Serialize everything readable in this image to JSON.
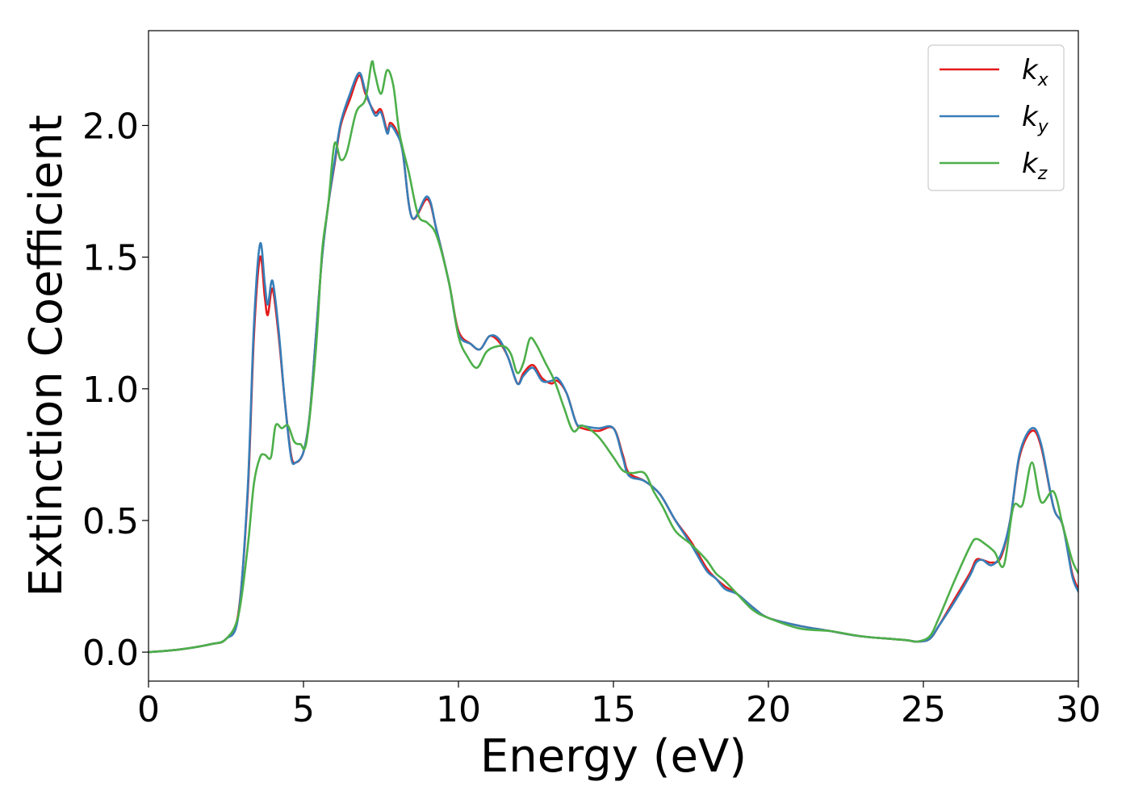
{
  "chart_data": {
    "type": "line",
    "title": "",
    "xlabel": "Energy (eV)",
    "ylabel": "Extinction Coefficient",
    "xlim": [
      0,
      30
    ],
    "ylim": [
      -0.11,
      2.36
    ],
    "xticks": [
      "0",
      "5",
      "10",
      "15",
      "20",
      "25",
      "30"
    ],
    "yticks": [
      "0.0",
      "0.5",
      "1.0",
      "1.5",
      "2.0"
    ],
    "grid": false,
    "legend_position": "top-right",
    "series": [
      {
        "name": "k",
        "subscript": "x",
        "color": "#e41a1c",
        "x": [
          0,
          1,
          2,
          2.5,
          2.9,
          3.2,
          3.4,
          3.6,
          3.75,
          3.85,
          4.0,
          4.2,
          4.4,
          4.6,
          4.75,
          5.0,
          5.2,
          5.4,
          5.6,
          5.8,
          6.0,
          6.2,
          6.5,
          6.8,
          7.0,
          7.3,
          7.5,
          7.7,
          7.8,
          8.0,
          8.2,
          8.5,
          9.0,
          9.3,
          9.7,
          10.0,
          10.4,
          10.7,
          11.0,
          11.3,
          11.6,
          11.9,
          12.1,
          12.4,
          12.7,
          13.0,
          13.2,
          13.5,
          13.8,
          14.0,
          14.5,
          15.0,
          15.3,
          15.5,
          16.0,
          16.5,
          17.0,
          17.5,
          18.0,
          18.3,
          18.6,
          19.0,
          19.5,
          20.0,
          21.0,
          22.0,
          23.0,
          24.0,
          24.5,
          24.8,
          25.2,
          25.5,
          26.0,
          26.5,
          26.7,
          26.9,
          27.2,
          27.5,
          27.8,
          28.1,
          28.5,
          28.8,
          29.2,
          29.5,
          29.8,
          30.0
        ],
        "y": [
          0.0,
          0.01,
          0.03,
          0.05,
          0.15,
          0.6,
          1.2,
          1.5,
          1.35,
          1.28,
          1.38,
          1.2,
          0.95,
          0.75,
          0.72,
          0.76,
          0.9,
          1.2,
          1.5,
          1.7,
          1.85,
          2.0,
          2.1,
          2.19,
          2.12,
          2.05,
          2.06,
          1.98,
          2.01,
          1.98,
          1.9,
          1.65,
          1.72,
          1.6,
          1.4,
          1.22,
          1.17,
          1.15,
          1.2,
          1.18,
          1.12,
          1.02,
          1.06,
          1.09,
          1.04,
          1.02,
          1.03,
          0.98,
          0.87,
          0.85,
          0.84,
          0.85,
          0.75,
          0.68,
          0.65,
          0.6,
          0.5,
          0.42,
          0.32,
          0.28,
          0.25,
          0.22,
          0.17,
          0.13,
          0.1,
          0.08,
          0.06,
          0.05,
          0.045,
          0.04,
          0.05,
          0.1,
          0.2,
          0.3,
          0.35,
          0.35,
          0.34,
          0.36,
          0.5,
          0.74,
          0.84,
          0.78,
          0.55,
          0.48,
          0.3,
          0.24
        ]
      },
      {
        "name": "k",
        "subscript": "y",
        "color": "#377eb8",
        "x": [
          0,
          1,
          2,
          2.5,
          2.9,
          3.2,
          3.4,
          3.6,
          3.75,
          3.85,
          4.0,
          4.2,
          4.4,
          4.6,
          4.75,
          5.0,
          5.2,
          5.4,
          5.6,
          5.8,
          6.0,
          6.2,
          6.5,
          6.8,
          7.0,
          7.3,
          7.5,
          7.7,
          7.8,
          8.0,
          8.2,
          8.5,
          9.0,
          9.3,
          9.7,
          10.0,
          10.4,
          10.7,
          11.0,
          11.3,
          11.6,
          11.9,
          12.1,
          12.4,
          12.7,
          13.0,
          13.2,
          13.5,
          13.8,
          14.0,
          14.5,
          15.0,
          15.3,
          15.5,
          16.0,
          16.5,
          17.0,
          17.5,
          18.0,
          18.3,
          18.6,
          19.0,
          19.5,
          20.0,
          21.0,
          22.0,
          23.0,
          24.0,
          24.5,
          24.8,
          25.2,
          25.5,
          26.0,
          26.5,
          26.7,
          26.9,
          27.2,
          27.5,
          27.8,
          28.1,
          28.5,
          28.8,
          29.2,
          29.5,
          29.8,
          30.0
        ],
        "y": [
          0.0,
          0.01,
          0.03,
          0.05,
          0.14,
          0.62,
          1.24,
          1.55,
          1.4,
          1.32,
          1.41,
          1.22,
          0.95,
          0.74,
          0.72,
          0.76,
          0.9,
          1.2,
          1.5,
          1.7,
          1.86,
          2.01,
          2.12,
          2.2,
          2.13,
          2.04,
          2.05,
          1.97,
          2.0,
          1.97,
          1.9,
          1.65,
          1.73,
          1.6,
          1.4,
          1.21,
          1.17,
          1.15,
          1.2,
          1.19,
          1.12,
          1.02,
          1.05,
          1.08,
          1.03,
          1.03,
          1.04,
          0.98,
          0.87,
          0.86,
          0.85,
          0.85,
          0.74,
          0.67,
          0.65,
          0.6,
          0.5,
          0.41,
          0.31,
          0.28,
          0.24,
          0.22,
          0.17,
          0.13,
          0.1,
          0.08,
          0.06,
          0.05,
          0.045,
          0.04,
          0.05,
          0.1,
          0.19,
          0.29,
          0.34,
          0.35,
          0.33,
          0.37,
          0.5,
          0.75,
          0.85,
          0.79,
          0.55,
          0.48,
          0.29,
          0.23
        ]
      },
      {
        "name": "k",
        "subscript": "z",
        "color": "#4daf4a",
        "x": [
          0,
          1,
          2,
          2.5,
          2.9,
          3.2,
          3.4,
          3.6,
          3.75,
          3.95,
          4.1,
          4.3,
          4.5,
          4.7,
          4.9,
          5.1,
          5.4,
          5.6,
          5.8,
          6.0,
          6.2,
          6.4,
          6.7,
          7.0,
          7.2,
          7.3,
          7.5,
          7.7,
          7.9,
          8.1,
          8.4,
          8.7,
          9.0,
          9.3,
          9.7,
          10.0,
          10.3,
          10.6,
          10.9,
          11.2,
          11.5,
          11.7,
          11.9,
          12.1,
          12.3,
          12.5,
          12.8,
          13.1,
          13.4,
          13.7,
          14.0,
          14.5,
          15.0,
          15.3,
          15.6,
          16.0,
          16.3,
          16.6,
          17.0,
          17.5,
          18.0,
          18.3,
          18.6,
          19.0,
          19.5,
          20.0,
          21.0,
          22.0,
          23.0,
          24.0,
          24.5,
          24.8,
          25.2,
          25.5,
          26.0,
          26.5,
          26.7,
          27.0,
          27.3,
          27.6,
          27.9,
          28.2,
          28.5,
          28.8,
          29.2,
          29.5,
          29.8,
          30.0
        ],
        "y": [
          0.0,
          0.01,
          0.03,
          0.05,
          0.14,
          0.4,
          0.64,
          0.74,
          0.75,
          0.74,
          0.86,
          0.85,
          0.86,
          0.8,
          0.79,
          0.8,
          1.15,
          1.52,
          1.7,
          1.93,
          1.87,
          1.9,
          2.05,
          2.1,
          2.24,
          2.2,
          2.12,
          2.21,
          2.15,
          1.97,
          1.82,
          1.66,
          1.63,
          1.58,
          1.4,
          1.2,
          1.12,
          1.08,
          1.14,
          1.16,
          1.16,
          1.13,
          1.06,
          1.1,
          1.19,
          1.17,
          1.1,
          1.03,
          0.93,
          0.84,
          0.86,
          0.82,
          0.74,
          0.69,
          0.68,
          0.68,
          0.61,
          0.55,
          0.46,
          0.41,
          0.35,
          0.3,
          0.27,
          0.22,
          0.16,
          0.13,
          0.09,
          0.08,
          0.06,
          0.05,
          0.045,
          0.04,
          0.06,
          0.13,
          0.27,
          0.4,
          0.43,
          0.41,
          0.38,
          0.33,
          0.55,
          0.56,
          0.72,
          0.57,
          0.61,
          0.48,
          0.35,
          0.3
        ]
      }
    ]
  }
}
